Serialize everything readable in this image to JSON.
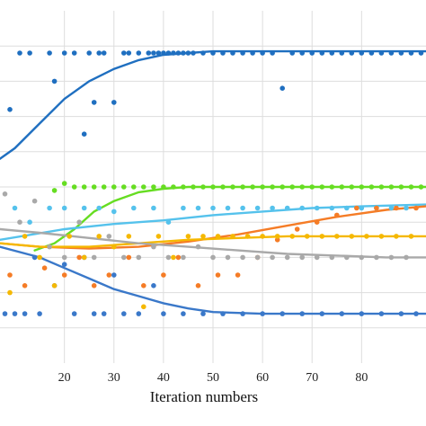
{
  "chart_data": {
    "type": "scatter",
    "title": "",
    "xlabel": "Iteration numbers",
    "ylabel": "",
    "xlim": [
      7,
      93
    ],
    "ylim": [
      0,
      100
    ],
    "x_ticks": [
      20,
      30,
      40,
      50,
      60,
      70,
      80
    ],
    "grid": true,
    "legend": "none",
    "series": [
      {
        "color": "#1f6fc0",
        "trend": [
          [
            7,
            58
          ],
          [
            10,
            61
          ],
          [
            15,
            68
          ],
          [
            20,
            75
          ],
          [
            25,
            80
          ],
          [
            30,
            83.5
          ],
          [
            35,
            86
          ],
          [
            40,
            87.5
          ],
          [
            45,
            88
          ],
          [
            50,
            88.5
          ],
          [
            60,
            88.5
          ],
          [
            93,
            88.5
          ]
        ],
        "points": [
          [
            9,
            72
          ],
          [
            11,
            88
          ],
          [
            13,
            88
          ],
          [
            17,
            88
          ],
          [
            18,
            80
          ],
          [
            20,
            88
          ],
          [
            22,
            88
          ],
          [
            24,
            65
          ],
          [
            25,
            88
          ],
          [
            26,
            74
          ],
          [
            27,
            88
          ],
          [
            28,
            88
          ],
          [
            30,
            74
          ],
          [
            32,
            88
          ],
          [
            33,
            88
          ],
          [
            35,
            88
          ],
          [
            37,
            88
          ],
          [
            38,
            88
          ],
          [
            39,
            88
          ],
          [
            40,
            88
          ],
          [
            41,
            88
          ],
          [
            42,
            88
          ],
          [
            43,
            88
          ],
          [
            44,
            88
          ],
          [
            45,
            88
          ],
          [
            46,
            88
          ],
          [
            48,
            88
          ],
          [
            50,
            88
          ],
          [
            52,
            88
          ],
          [
            54,
            88
          ],
          [
            56,
            88
          ],
          [
            58,
            88
          ],
          [
            60,
            88
          ],
          [
            62,
            88
          ],
          [
            64,
            78
          ],
          [
            66,
            88
          ],
          [
            68,
            88
          ],
          [
            70,
            88
          ],
          [
            72,
            88
          ],
          [
            74,
            88
          ],
          [
            76,
            88
          ],
          [
            78,
            88
          ],
          [
            80,
            88
          ],
          [
            82,
            88
          ],
          [
            84,
            88
          ],
          [
            86,
            88
          ],
          [
            88,
            88
          ],
          [
            90,
            88
          ],
          [
            92,
            88
          ]
        ]
      },
      {
        "color": "#3a78c9",
        "trend": [
          [
            7,
            33
          ],
          [
            15,
            30
          ],
          [
            20,
            27
          ],
          [
            25,
            24
          ],
          [
            30,
            21
          ],
          [
            35,
            19
          ],
          [
            40,
            17
          ],
          [
            45,
            15.5
          ],
          [
            50,
            14.5
          ],
          [
            60,
            14
          ],
          [
            70,
            14
          ],
          [
            80,
            14
          ],
          [
            93,
            14
          ]
        ],
        "points": [
          [
            8,
            14
          ],
          [
            10,
            14
          ],
          [
            12,
            14
          ],
          [
            14,
            30
          ],
          [
            15,
            14
          ],
          [
            18,
            22
          ],
          [
            20,
            28
          ],
          [
            22,
            14
          ],
          [
            24,
            30
          ],
          [
            26,
            14
          ],
          [
            28,
            14
          ],
          [
            30,
            25
          ],
          [
            32,
            14
          ],
          [
            35,
            14
          ],
          [
            38,
            22
          ],
          [
            40,
            14
          ],
          [
            44,
            14
          ],
          [
            48,
            14
          ],
          [
            52,
            14
          ],
          [
            56,
            14
          ],
          [
            60,
            14
          ],
          [
            64,
            14
          ],
          [
            68,
            14
          ],
          [
            72,
            14
          ],
          [
            76,
            14
          ],
          [
            80,
            14
          ],
          [
            84,
            14
          ],
          [
            88,
            14
          ],
          [
            91,
            14
          ]
        ]
      },
      {
        "color": "#66dd22",
        "trend": [
          [
            14,
            32
          ],
          [
            18,
            34
          ],
          [
            22,
            38
          ],
          [
            26,
            43
          ],
          [
            30,
            46
          ],
          [
            35,
            48.5
          ],
          [
            40,
            49.5
          ],
          [
            45,
            50
          ],
          [
            50,
            50
          ],
          [
            93,
            50
          ]
        ],
        "points": [
          [
            18,
            49
          ],
          [
            20,
            51
          ],
          [
            22,
            50
          ],
          [
            24,
            50
          ],
          [
            26,
            50
          ],
          [
            28,
            50
          ],
          [
            30,
            50
          ],
          [
            32,
            50
          ],
          [
            34,
            50
          ],
          [
            36,
            50
          ],
          [
            38,
            50
          ],
          [
            40,
            50
          ],
          [
            42,
            50
          ],
          [
            44,
            50
          ],
          [
            46,
            50
          ],
          [
            48,
            50
          ],
          [
            50,
            50
          ],
          [
            52,
            50
          ],
          [
            54,
            50
          ],
          [
            56,
            50
          ],
          [
            58,
            50
          ],
          [
            60,
            50
          ],
          [
            62,
            50
          ],
          [
            64,
            50
          ],
          [
            66,
            50
          ],
          [
            68,
            50
          ],
          [
            70,
            50
          ],
          [
            72,
            50
          ],
          [
            74,
            50
          ],
          [
            76,
            50
          ],
          [
            78,
            50
          ],
          [
            80,
            50
          ],
          [
            82,
            50
          ],
          [
            84,
            50
          ],
          [
            86,
            50
          ],
          [
            88,
            50
          ],
          [
            90,
            50
          ],
          [
            92,
            50
          ]
        ]
      },
      {
        "color": "#55c2ec",
        "trend": [
          [
            7,
            35
          ],
          [
            20,
            38
          ],
          [
            30,
            39.5
          ],
          [
            40,
            40.5
          ],
          [
            50,
            42
          ],
          [
            60,
            43
          ],
          [
            70,
            44
          ],
          [
            80,
            44.5
          ],
          [
            93,
            45
          ]
        ],
        "points": [
          [
            10,
            44
          ],
          [
            13,
            40
          ],
          [
            17,
            44
          ],
          [
            20,
            44
          ],
          [
            24,
            44
          ],
          [
            27,
            44
          ],
          [
            30,
            43
          ],
          [
            34,
            44
          ],
          [
            38,
            44
          ],
          [
            41,
            40
          ],
          [
            44,
            44
          ],
          [
            47,
            44
          ],
          [
            50,
            44
          ],
          [
            53,
            44
          ],
          [
            56,
            44
          ],
          [
            59,
            44
          ],
          [
            62,
            44
          ],
          [
            65,
            44
          ],
          [
            68,
            44
          ],
          [
            71,
            44
          ],
          [
            74,
            44
          ],
          [
            77,
            44
          ],
          [
            80,
            44
          ],
          [
            83,
            44
          ],
          [
            86,
            44
          ],
          [
            89,
            44
          ]
        ]
      },
      {
        "color": "#f57c26",
        "trend": [
          [
            7,
            34
          ],
          [
            15,
            33
          ],
          [
            25,
            32.5
          ],
          [
            35,
            33
          ],
          [
            45,
            34.5
          ],
          [
            55,
            36.5
          ],
          [
            65,
            39
          ],
          [
            75,
            41.5
          ],
          [
            85,
            43.5
          ],
          [
            93,
            44.5
          ]
        ],
        "points": [
          [
            9,
            25
          ],
          [
            12,
            22
          ],
          [
            16,
            27
          ],
          [
            20,
            25
          ],
          [
            23,
            30
          ],
          [
            26,
            22
          ],
          [
            29,
            25
          ],
          [
            33,
            30
          ],
          [
            36,
            22
          ],
          [
            40,
            25
          ],
          [
            43,
            30
          ],
          [
            47,
            22
          ],
          [
            51,
            25
          ],
          [
            55,
            25
          ],
          [
            59,
            30
          ],
          [
            63,
            35
          ],
          [
            67,
            38
          ],
          [
            71,
            40
          ],
          [
            75,
            42
          ],
          [
            79,
            44
          ],
          [
            83,
            44
          ],
          [
            87,
            44
          ],
          [
            91,
            44
          ]
        ]
      },
      {
        "color": "#f5b800",
        "trend": [
          [
            7,
            34
          ],
          [
            15,
            33
          ],
          [
            25,
            33
          ],
          [
            35,
            34
          ],
          [
            45,
            35
          ],
          [
            55,
            35.5
          ],
          [
            65,
            36
          ],
          [
            75,
            36
          ],
          [
            93,
            36
          ]
        ],
        "points": [
          [
            9,
            20
          ],
          [
            12,
            36
          ],
          [
            15,
            30
          ],
          [
            18,
            22
          ],
          [
            21,
            36
          ],
          [
            24,
            30
          ],
          [
            27,
            36
          ],
          [
            30,
            33
          ],
          [
            33,
            36
          ],
          [
            36,
            16
          ],
          [
            39,
            36
          ],
          [
            42,
            30
          ],
          [
            45,
            36
          ],
          [
            48,
            36
          ],
          [
            51,
            36
          ],
          [
            54,
            36
          ],
          [
            57,
            36
          ],
          [
            60,
            36
          ],
          [
            63,
            36
          ],
          [
            66,
            36
          ],
          [
            69,
            36
          ],
          [
            72,
            36
          ],
          [
            75,
            36
          ],
          [
            78,
            36
          ],
          [
            81,
            36
          ],
          [
            84,
            36
          ],
          [
            87,
            36
          ],
          [
            90,
            36
          ]
        ]
      },
      {
        "color": "#a9a9a9",
        "trend": [
          [
            7,
            38
          ],
          [
            15,
            37
          ],
          [
            25,
            35.5
          ],
          [
            35,
            34
          ],
          [
            45,
            33
          ],
          [
            55,
            32
          ],
          [
            65,
            31
          ],
          [
            75,
            30.5
          ],
          [
            85,
            30
          ],
          [
            93,
            30
          ]
        ],
        "points": [
          [
            8,
            48
          ],
          [
            11,
            40
          ],
          [
            14,
            46
          ],
          [
            17,
            33
          ],
          [
            20,
            30
          ],
          [
            23,
            40
          ],
          [
            26,
            30
          ],
          [
            29,
            36
          ],
          [
            32,
            30
          ],
          [
            35,
            30
          ],
          [
            38,
            33
          ],
          [
            41,
            30
          ],
          [
            44,
            30
          ],
          [
            47,
            33
          ],
          [
            50,
            30
          ],
          [
            53,
            30
          ],
          [
            56,
            30
          ],
          [
            59,
            30
          ],
          [
            62,
            30
          ],
          [
            65,
            30
          ],
          [
            68,
            30
          ],
          [
            71,
            30
          ],
          [
            74,
            30
          ],
          [
            77,
            30
          ],
          [
            80,
            30
          ],
          [
            83,
            30
          ],
          [
            86,
            30
          ],
          [
            89,
            30
          ]
        ]
      }
    ]
  }
}
